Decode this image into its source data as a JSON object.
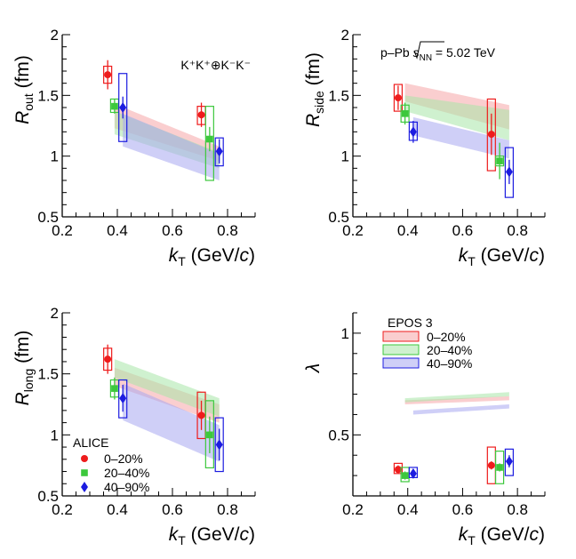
{
  "chart_data": [
    {
      "type": "scatter",
      "id": "rout",
      "ylabel": "R_out (fm)",
      "ylabel_main": "R",
      "ylabel_sub": "out",
      "ylabel_unit": " (fm)",
      "xlabel": "k_T (GeV/c)",
      "xlim": [
        0.2,
        0.9
      ],
      "ylim": [
        0.5,
        2.0
      ],
      "xticks": [
        0.2,
        0.4,
        0.6,
        0.8
      ],
      "xtick_labels": [
        "0.2",
        "0.4",
        "0.6",
        "0.8"
      ],
      "yticks": [
        0.5,
        1.0,
        1.5,
        2.0
      ],
      "ytick_labels": [
        "0.5",
        "1",
        "1.5",
        "2"
      ],
      "annotation": "K⁺K⁺⊕K⁻K⁻",
      "series": [
        {
          "name": "0–20%",
          "x": [
            0.365,
            0.705
          ],
          "y": [
            1.67,
            1.34
          ],
          "stat_err": [
            0.12,
            0.1
          ],
          "syst": [
            [
              1.6,
              1.74
            ],
            [
              1.26,
              1.41
            ]
          ]
        },
        {
          "name": "20–40%",
          "x": [
            0.39,
            0.735
          ],
          "y": [
            1.41,
            1.14
          ],
          "stat_err": [
            0.06,
            0.1
          ],
          "syst": [
            [
              1.36,
              1.47
            ],
            [
              0.8,
              1.41
            ]
          ]
        },
        {
          "name": "40–90%",
          "x": [
            0.42,
            0.77
          ],
          "y": [
            1.4,
            1.04
          ],
          "stat_err": [
            0.09,
            0.1
          ],
          "syst": [
            [
              1.12,
              1.68
            ],
            [
              0.92,
              1.15
            ]
          ]
        }
      ],
      "model_bands": [
        {
          "name": "0–20%",
          "x": [
            0.39,
            0.77
          ],
          "ylow": [
            1.23,
            0.96
          ],
          "yhigh": [
            1.43,
            1.08
          ]
        },
        {
          "name": "20–40%",
          "x": [
            0.39,
            0.77
          ],
          "ylow": [
            1.18,
            0.9
          ],
          "yhigh": [
            1.37,
            1.03
          ]
        },
        {
          "name": "40–90%",
          "x": [
            0.42,
            0.77
          ],
          "ylow": [
            1.08,
            0.8
          ],
          "yhigh": [
            1.35,
            1.02
          ]
        }
      ]
    },
    {
      "type": "scatter",
      "id": "rside",
      "ylabel": "R_side (fm)",
      "ylabel_main": "R",
      "ylabel_sub": "side",
      "ylabel_unit": " (fm)",
      "xlabel": "k_T (GeV/c)",
      "xlim": [
        0.2,
        0.9
      ],
      "ylim": [
        0.5,
        2.0
      ],
      "xticks": [
        0.2,
        0.4,
        0.6,
        0.8
      ],
      "xtick_labels": [
        "0.2",
        "0.4",
        "0.6",
        "0.8"
      ],
      "yticks": [
        0.5,
        1.0,
        1.5,
        2.0
      ],
      "ytick_labels": [
        "0.5",
        "1",
        "1.5",
        "2"
      ],
      "annotation_prefix": "p–Pb ",
      "annotation_sqrt": "s",
      "annotation_sub": "NN",
      "annotation_suffix": " = 5.02 TeV",
      "series": [
        {
          "name": "0–20%",
          "x": [
            0.365,
            0.705
          ],
          "y": [
            1.48,
            1.18
          ],
          "stat_err": [
            0.1,
            0.17
          ],
          "syst": [
            [
              1.37,
              1.59
            ],
            [
              0.88,
              1.47
            ]
          ]
        },
        {
          "name": "20–40%",
          "x": [
            0.39,
            0.735
          ],
          "y": [
            1.35,
            0.96
          ],
          "stat_err": [
            0.09,
            0.15
          ],
          "syst": [
            [
              1.28,
              1.42
            ],
            [
              0.92,
              1.0
            ]
          ]
        },
        {
          "name": "40–90%",
          "x": [
            0.42,
            0.77
          ],
          "y": [
            1.2,
            0.87
          ],
          "stat_err": [
            0.09,
            0.1
          ],
          "syst": [
            [
              1.13,
              1.28
            ],
            [
              0.66,
              1.07
            ]
          ]
        }
      ],
      "model_bands": [
        {
          "name": "0–20%",
          "x": [
            0.39,
            0.77
          ],
          "ylow": [
            1.45,
            1.22
          ],
          "yhigh": [
            1.6,
            1.42
          ]
        },
        {
          "name": "20–40%",
          "x": [
            0.39,
            0.77
          ],
          "ylow": [
            1.37,
            1.13
          ],
          "yhigh": [
            1.5,
            1.38
          ]
        },
        {
          "name": "40–90%",
          "x": [
            0.42,
            0.77
          ],
          "ylow": [
            1.17,
            0.98
          ],
          "yhigh": [
            1.32,
            1.13
          ]
        }
      ]
    },
    {
      "type": "scatter",
      "id": "rlong",
      "ylabel": "R_long (fm)",
      "ylabel_main": "R",
      "ylabel_sub": "long",
      "ylabel_unit": " (fm)",
      "xlabel": "k_T (GeV/c)",
      "xlim": [
        0.2,
        0.9
      ],
      "ylim": [
        0.5,
        2.0
      ],
      "xticks": [
        0.2,
        0.4,
        0.6,
        0.8
      ],
      "xtick_labels": [
        "0.2",
        "0.4",
        "0.6",
        "0.8"
      ],
      "yticks": [
        0.5,
        1.0,
        1.5,
        2.0
      ],
      "ytick_labels": [
        "0.5",
        "1",
        "1.5",
        "2"
      ],
      "legend": {
        "title": "ALICE",
        "entries": [
          "0–20%",
          "20–40%",
          "40–90%"
        ],
        "position": "bottom-left"
      },
      "series": [
        {
          "name": "0–20%",
          "x": [
            0.365,
            0.705
          ],
          "y": [
            1.62,
            1.16
          ],
          "stat_err": [
            0.12,
            0.12
          ],
          "syst": [
            [
              1.53,
              1.71
            ],
            [
              0.97,
              1.35
            ]
          ]
        },
        {
          "name": "20–40%",
          "x": [
            0.39,
            0.735
          ],
          "y": [
            1.38,
            1.0
          ],
          "stat_err": [
            0.09,
            0.15
          ],
          "syst": [
            [
              1.31,
              1.45
            ],
            [
              0.73,
              1.28
            ]
          ]
        },
        {
          "name": "40–90%",
          "x": [
            0.42,
            0.77
          ],
          "y": [
            1.3,
            0.92
          ],
          "stat_err": [
            0.11,
            0.13
          ],
          "syst": [
            [
              1.14,
              1.45
            ],
            [
              0.7,
              1.14
            ]
          ]
        }
      ],
      "model_bands": [
        {
          "name": "0–20%",
          "x": [
            0.39,
            0.77
          ],
          "ylow": [
            1.4,
            1.1
          ],
          "yhigh": [
            1.55,
            1.25
          ]
        },
        {
          "name": "20–40%",
          "x": [
            0.39,
            0.77
          ],
          "ylow": [
            1.47,
            1.15
          ],
          "yhigh": [
            1.62,
            1.3
          ]
        },
        {
          "name": "40–90%",
          "x": [
            0.42,
            0.77
          ],
          "ylow": [
            1.12,
            0.78
          ],
          "yhigh": [
            1.42,
            1.08
          ]
        }
      ]
    },
    {
      "type": "scatter",
      "id": "lambda",
      "ylabel": "λ",
      "ylabel_main": "λ",
      "ylabel_sub": "",
      "ylabel_unit": "",
      "xlabel": "k_T (GeV/c)",
      "xlim": [
        0.2,
        0.9
      ],
      "ylim": [
        0.2,
        1.1
      ],
      "xticks": [
        0.2,
        0.4,
        0.6,
        0.8
      ],
      "xtick_labels": [
        "0.2",
        "0.4",
        "0.6",
        "0.8"
      ],
      "yticks": [
        0.5,
        1.0
      ],
      "ytick_labels": [
        "0.5",
        "1"
      ],
      "legend": {
        "title": "EPOS 3",
        "entries": [
          "0–20%",
          "20–40%",
          "40–90%"
        ],
        "position": "top-left"
      },
      "series": [
        {
          "name": "0–20%",
          "x": [
            0.365,
            0.705
          ],
          "y": [
            0.33,
            0.35
          ],
          "stat_err": [
            0.02,
            0.02
          ],
          "syst": [
            [
              0.31,
              0.36
            ],
            [
              0.26,
              0.44
            ]
          ]
        },
        {
          "name": "20–40%",
          "x": [
            0.39,
            0.735
          ],
          "y": [
            0.3,
            0.34
          ],
          "stat_err": [
            0.02,
            0.02
          ],
          "syst": [
            [
              0.27,
              0.34
            ],
            [
              0.26,
              0.42
            ]
          ]
        },
        {
          "name": "40–90%",
          "x": [
            0.42,
            0.77
          ],
          "y": [
            0.31,
            0.37
          ],
          "stat_err": [
            0.02,
            0.03
          ],
          "syst": [
            [
              0.29,
              0.34
            ],
            [
              0.3,
              0.43
            ]
          ]
        }
      ],
      "model_bands": [
        {
          "name": "0–20%",
          "x": [
            0.39,
            0.77
          ],
          "ylow": [
            0.65,
            0.67
          ],
          "yhigh": [
            0.67,
            0.69
          ]
        },
        {
          "name": "20–40%",
          "x": [
            0.39,
            0.77
          ],
          "ylow": [
            0.66,
            0.69
          ],
          "yhigh": [
            0.68,
            0.71
          ]
        },
        {
          "name": "40–90%",
          "x": [
            0.42,
            0.77
          ],
          "ylow": [
            0.6,
            0.63
          ],
          "yhigh": [
            0.62,
            0.65
          ]
        }
      ]
    }
  ],
  "colors": {
    "c0_20": "#ee1c1c",
    "c20_40": "#3cc83c",
    "c40_90": "#1c1ce0",
    "band0": "#f5a5a8",
    "band1": "#a8e6a8",
    "band2": "#a8a8f0"
  }
}
